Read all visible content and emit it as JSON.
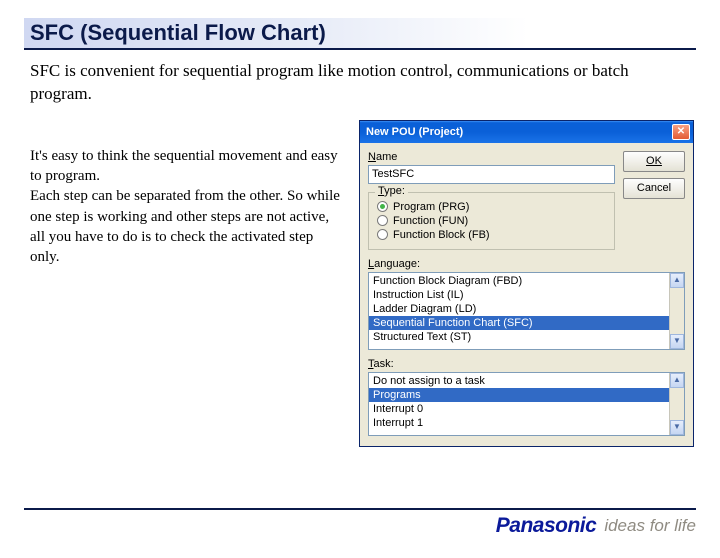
{
  "slide": {
    "title": "SFC (Sequential Flow Chart)",
    "intro": "SFC is convenient for sequential program like motion control, communications or batch program.",
    "body": "It's easy to think the sequential movement and easy to program.\nEach step can be separated from the other. So while one step is working and other steps are not active, all you have to do is to check the activated step only."
  },
  "dialog": {
    "title": "New POU (Project)",
    "name_label": "Name",
    "name_value": "TestSFC",
    "ok_label": "OK",
    "cancel_label": "Cancel",
    "type_label": "Type:",
    "types": [
      {
        "label": "Program (PRG)",
        "checked": true
      },
      {
        "label": "Function (FUN)",
        "checked": false
      },
      {
        "label": "Function Block (FB)",
        "checked": false
      }
    ],
    "language_label": "Language:",
    "languages": [
      {
        "label": "Function Block Diagram (FBD)",
        "selected": false
      },
      {
        "label": "Instruction List (IL)",
        "selected": false
      },
      {
        "label": "Ladder Diagram (LD)",
        "selected": false
      },
      {
        "label": "Sequential Function Chart (SFC)",
        "selected": true
      },
      {
        "label": "Structured Text (ST)",
        "selected": false
      }
    ],
    "task_label": "Task:",
    "tasks": [
      {
        "label": "Do not assign to a task",
        "selected": false
      },
      {
        "label": "Programs",
        "selected": true
      },
      {
        "label": "Interrupt 0",
        "selected": false
      },
      {
        "label": "Interrupt 1",
        "selected": false
      }
    ]
  },
  "footer": {
    "brand": "Panasonic",
    "tagline": "ideas for life"
  }
}
